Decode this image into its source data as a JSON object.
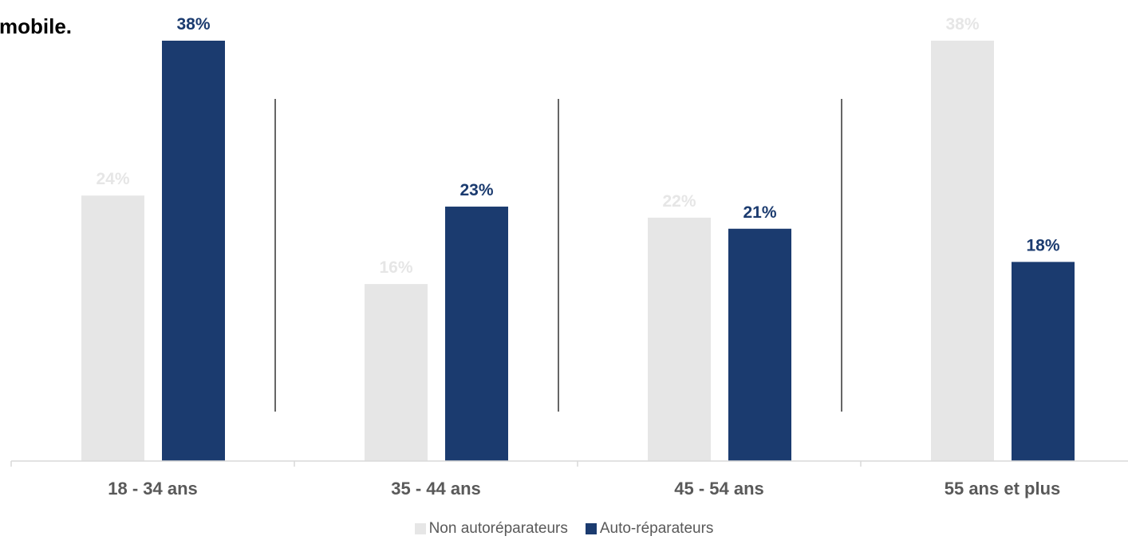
{
  "title_fragment": "mobile.",
  "chart_data": {
    "type": "bar",
    "categories": [
      "18 - 34 ans",
      "35 - 44 ans",
      "45 - 54 ans",
      "55 ans et plus"
    ],
    "series": [
      {
        "name": "Non autoréparateurs",
        "values": [
          24,
          16,
          22,
          38
        ],
        "labels": [
          "24%",
          "16%",
          "22%",
          "38%"
        ],
        "color": "#E6E6E6",
        "label_color": "#E6E6E6"
      },
      {
        "name": "Auto-réparateurs",
        "values": [
          38,
          23,
          21,
          18
        ],
        "labels": [
          "38%",
          "23%",
          "21%",
          "18%"
        ],
        "color": "#1B3B6F",
        "label_color": "#1B3B6F"
      }
    ],
    "ylim": [
      0,
      38
    ],
    "unit": "%",
    "grid": false,
    "legend_position": "bottom"
  }
}
